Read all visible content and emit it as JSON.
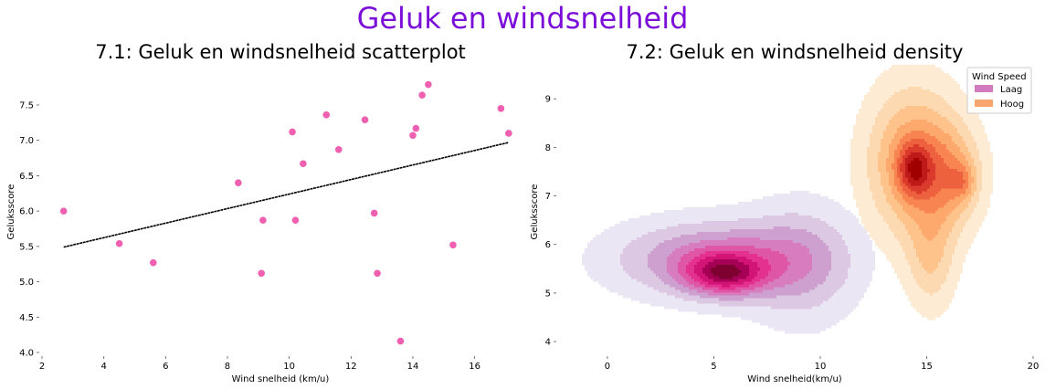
{
  "suptitle": "Geluk en windsnelheid",
  "suptitle_color": "#7b0fd9",
  "chart_data": [
    {
      "type": "scatter",
      "title": "7.1: Geluk en windsnelheid scatterplot",
      "xlabel": "Wind snelheid (km/u)",
      "ylabel": "Geluksscore",
      "xlim": [
        2,
        17.4
      ],
      "ylim": [
        4.0,
        7.9
      ],
      "xticks": [
        2,
        4,
        6,
        8,
        10,
        12,
        14,
        16
      ],
      "yticks": [
        4.0,
        4.5,
        5.0,
        5.5,
        6.0,
        6.5,
        7.0,
        7.5
      ],
      "point_color": "#f060b0",
      "line_color": "#000000",
      "points": [
        [
          2.7,
          6.0
        ],
        [
          4.5,
          5.54
        ],
        [
          5.6,
          5.27
        ],
        [
          8.35,
          6.4
        ],
        [
          9.1,
          5.12
        ],
        [
          9.15,
          5.87
        ],
        [
          10.1,
          7.12
        ],
        [
          10.2,
          5.87
        ],
        [
          10.45,
          6.67
        ],
        [
          11.2,
          7.36
        ],
        [
          11.6,
          6.87
        ],
        [
          12.45,
          7.29
        ],
        [
          12.75,
          5.97
        ],
        [
          12.85,
          5.12
        ],
        [
          13.6,
          4.16
        ],
        [
          14.0,
          7.07
        ],
        [
          14.1,
          7.17
        ],
        [
          14.3,
          7.64
        ],
        [
          14.5,
          7.79
        ],
        [
          15.3,
          5.52
        ],
        [
          16.85,
          7.45
        ],
        [
          17.1,
          7.1
        ]
      ],
      "regression": {
        "x": [
          2.7,
          17.1
        ],
        "y": [
          5.49,
          6.97
        ]
      }
    },
    {
      "type": "area",
      "subtype": "kde-density",
      "title": "7.2: Geluk en windsnelheid density",
      "xlabel": "Wind snelheid(km/u)",
      "ylabel": "Geluksscore",
      "xlim": [
        -1.2,
        20
      ],
      "ylim": [
        3.7,
        9.7
      ],
      "xticks": [
        0,
        5,
        10,
        15,
        20
      ],
      "yticks": [
        4,
        5,
        6,
        7,
        8,
        9
      ],
      "legend_title": "Wind Speed",
      "legend_position": "upper-right",
      "series": [
        {
          "name": "Laag",
          "legend_color": "#d27cbf",
          "levels": [
            "#ebe6f3",
            "#dcc8e3",
            "#cda0cf",
            "#d77cbe",
            "#e056a7",
            "#e4308f",
            "#d11476",
            "#a50055",
            "#7e0030"
          ],
          "components": [
            {
              "mx": 5.0,
              "my": 5.7,
              "sx": 3.2,
              "sy": 0.55,
              "w": 0.7
            },
            {
              "mx": 9.2,
              "my": 5.6,
              "sx": 1.8,
              "sy": 0.9,
              "w": 0.38
            },
            {
              "mx": 5.5,
              "my": 5.4,
              "sx": 1.3,
              "sy": 0.3,
              "w": 0.9
            }
          ]
        },
        {
          "name": "Hoog",
          "legend_color": "#f9a56e",
          "levels": [
            "#fdebd4",
            "#fdd9b2",
            "#fdc38b",
            "#fda86c",
            "#f88451",
            "#ed613f",
            "#d93a2c",
            "#bf1a1a",
            "#a00000"
          ],
          "components": [
            {
              "mx": 14.4,
              "my": 7.7,
              "sx": 1.5,
              "sy": 1.05,
              "w": 0.85
            },
            {
              "mx": 16.2,
              "my": 7.4,
              "sx": 1.0,
              "sy": 0.7,
              "w": 0.5
            },
            {
              "mx": 15.2,
              "my": 5.7,
              "sx": 0.8,
              "sy": 0.75,
              "w": 0.42
            },
            {
              "mx": 14.4,
              "my": 7.55,
              "sx": 0.55,
              "sy": 0.38,
              "w": 0.7
            },
            {
              "mx": 16.7,
              "my": 7.3,
              "sx": 0.4,
              "sy": 0.25,
              "w": 0.35
            }
          ]
        }
      ]
    }
  ]
}
